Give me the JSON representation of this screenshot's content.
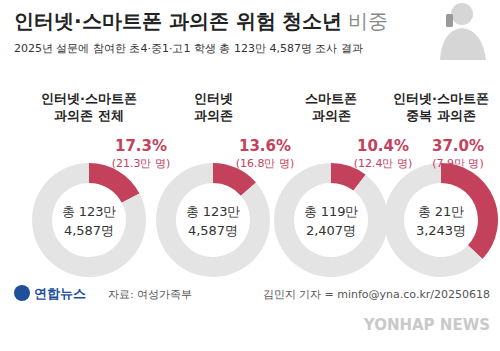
{
  "header": {
    "title": "인터넷·스마트폰 과의존 위험 청소년",
    "title_suffix": "비중",
    "subtitle": "2025년 설문에 참여한 초4·중1·고1 학생 총 123만 4,587명 조사 결과"
  },
  "chart_data": [
    {
      "type": "pie",
      "title": "인터넷·스마트폰\n과의존 전체",
      "categories": [
        null,
        null
      ],
      "values": [
        17.3,
        82.7
      ],
      "value_labels": [
        "17.3%",
        null
      ],
      "data_labels": true,
      "colors": [
        "#c4415c",
        "#e4e4e4"
      ],
      "count_label": "(21.3만 명)",
      "center_label": "총 123만\n4,587명"
    },
    {
      "type": "pie",
      "title": "인터넷\n과의존",
      "categories": [
        null,
        null
      ],
      "values": [
        13.6,
        86.4
      ],
      "value_labels": [
        "13.6%",
        null
      ],
      "data_labels": true,
      "colors": [
        "#c4415c",
        "#e4e4e4"
      ],
      "count_label": "(16.8만 명)",
      "center_label": "총 123만\n4,587명"
    },
    {
      "type": "pie",
      "title": "스마트폰\n과의존",
      "categories": [
        null,
        null
      ],
      "values": [
        10.4,
        89.6
      ],
      "value_labels": [
        "10.4%",
        null
      ],
      "data_labels": true,
      "colors": [
        "#c4415c",
        "#e4e4e4"
      ],
      "count_label": "(12.4만 명)",
      "center_label": "총 119만\n2,407명"
    },
    {
      "type": "pie",
      "title": "인터넷·스마트폰\n중복 과의존",
      "categories": [
        null,
        null
      ],
      "values": [
        37.0,
        63.0
      ],
      "value_labels": [
        "37.0%",
        null
      ],
      "data_labels": true,
      "colors": [
        "#c4415c",
        "#e4e4e4"
      ],
      "count_label": "(7.9만 명)",
      "center_label": "총 21만\n3,243명"
    }
  ],
  "footer": {
    "logo": "연합뉴스",
    "source": "자료: 여성가족부",
    "credit": "김민지 기자 = minfo@yna.co.kr/20250618",
    "watermark": "YONHAP NEWS"
  }
}
